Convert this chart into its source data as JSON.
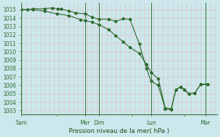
{
  "bg_color": "#cce8ec",
  "grid_major_color": "#aacccc",
  "grid_minor_color": "#ddbbbb",
  "line_color": "#2d6a2d",
  "marker_color": "#2d6a2d",
  "xlabel": "Pression niveau de la mer( hPa )",
  "ylim": [
    1002.5,
    1015.8
  ],
  "xlim": [
    0,
    8.3
  ],
  "yticks": [
    1003,
    1004,
    1005,
    1006,
    1007,
    1008,
    1009,
    1010,
    1011,
    1012,
    1013,
    1014,
    1015
  ],
  "xtick_labels": [
    "Sam",
    "",
    "Mer",
    "Dim",
    "",
    "Lun",
    "",
    "Mar"
  ],
  "xtick_positions": [
    0,
    1.5,
    2.7,
    3.3,
    4.7,
    5.5,
    6.9,
    7.8
  ],
  "day_vlines": [
    0,
    2.7,
    3.3,
    5.5,
    7.8
  ],
  "series1": [
    [
      0.0,
      1015.0
    ],
    [
      0.25,
      1015.0
    ],
    [
      0.5,
      1015.1
    ],
    [
      1.0,
      1015.1
    ],
    [
      1.3,
      1015.2
    ],
    [
      1.55,
      1015.1
    ],
    [
      1.7,
      1015.05
    ],
    [
      2.0,
      1014.85
    ],
    [
      2.3,
      1014.6
    ],
    [
      2.7,
      1014.5
    ],
    [
      3.0,
      1014.1
    ],
    [
      3.3,
      1013.85
    ],
    [
      3.7,
      1013.85
    ],
    [
      4.0,
      1013.6
    ],
    [
      4.3,
      1013.9
    ],
    [
      4.6,
      1013.85
    ],
    [
      5.0,
      1010.9
    ],
    [
      5.3,
      1008.0
    ],
    [
      5.5,
      1006.5
    ],
    [
      5.8,
      1006.0
    ],
    [
      6.1,
      1003.2
    ],
    [
      6.35,
      1003.1
    ],
    [
      6.55,
      1005.5
    ],
    [
      6.75,
      1005.8
    ],
    [
      6.9,
      1005.5
    ],
    [
      7.1,
      1005.0
    ],
    [
      7.35,
      1005.05
    ],
    [
      7.6,
      1006.1
    ],
    [
      7.9,
      1006.1
    ]
  ],
  "series2": [
    [
      0.0,
      1015.0
    ],
    [
      0.5,
      1015.0
    ],
    [
      1.0,
      1014.8
    ],
    [
      1.5,
      1014.5
    ],
    [
      2.0,
      1014.3
    ],
    [
      2.5,
      1013.8
    ],
    [
      2.7,
      1013.7
    ],
    [
      3.0,
      1013.5
    ],
    [
      3.3,
      1013.2
    ],
    [
      3.7,
      1012.6
    ],
    [
      4.0,
      1011.9
    ],
    [
      4.3,
      1011.2
    ],
    [
      4.6,
      1010.5
    ],
    [
      5.0,
      1009.8
    ],
    [
      5.3,
      1008.5
    ],
    [
      5.5,
      1007.5
    ],
    [
      5.8,
      1006.8
    ],
    [
      6.1,
      1003.3
    ],
    [
      6.35,
      1003.2
    ],
    [
      6.55,
      1005.5
    ],
    [
      6.75,
      1005.8
    ],
    [
      6.9,
      1005.5
    ],
    [
      7.1,
      1005.0
    ],
    [
      7.35,
      1005.05
    ],
    [
      7.6,
      1006.1
    ],
    [
      7.9,
      1006.15
    ]
  ]
}
